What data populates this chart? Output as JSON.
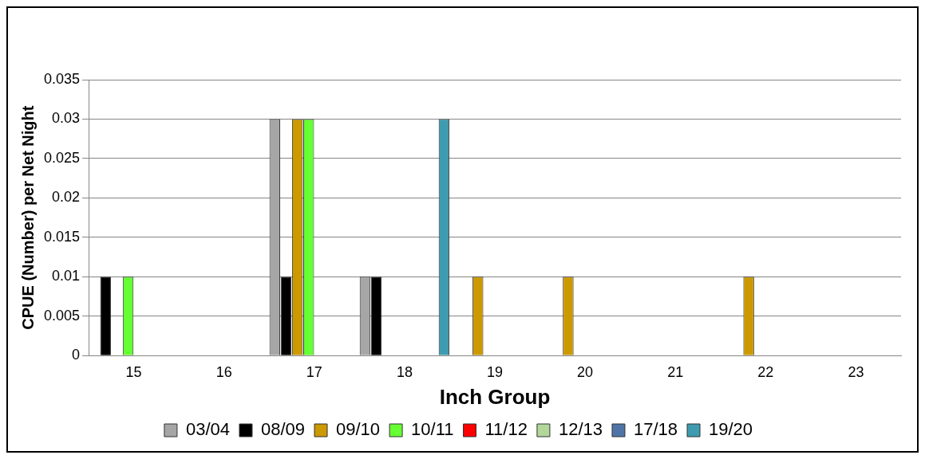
{
  "chart_data": {
    "type": "bar",
    "xlabel": "Inch Group",
    "ylabel": "CPUE (Number) per Net Night",
    "categories": [
      "15",
      "16",
      "17",
      "18",
      "19",
      "20",
      "21",
      "22",
      "23"
    ],
    "series": [
      {
        "name": "03/04",
        "color": "#a6a6a6",
        "values": [
          0,
          0,
          0.03,
          0.01,
          0,
          0,
          0,
          0,
          0
        ]
      },
      {
        "name": "08/09",
        "color": "#000000",
        "values": [
          0.01,
          0,
          0.01,
          0.01,
          0,
          0,
          0,
          0,
          0
        ]
      },
      {
        "name": "09/10",
        "color": "#cc9900",
        "values": [
          0,
          0,
          0.03,
          0,
          0.01,
          0.01,
          0,
          0.01,
          0
        ]
      },
      {
        "name": "10/11",
        "color": "#66ff33",
        "values": [
          0.01,
          0,
          0.03,
          0,
          0,
          0,
          0,
          0,
          0
        ]
      },
      {
        "name": "11/12",
        "color": "#ff0000",
        "values": [
          0,
          0,
          0,
          0,
          0,
          0,
          0,
          0,
          0
        ]
      },
      {
        "name": "12/13",
        "color": "#b3d69b",
        "values": [
          0,
          0,
          0,
          0,
          0,
          0,
          0,
          0,
          0
        ]
      },
      {
        "name": "17/18",
        "color": "#4f75a8",
        "values": [
          0,
          0,
          0,
          0,
          0,
          0,
          0,
          0,
          0
        ]
      },
      {
        "name": "19/20",
        "color": "#3f9cb0",
        "values": [
          0,
          0,
          0,
          0.03,
          0,
          0,
          0,
          0,
          0
        ]
      }
    ],
    "ylim": [
      0,
      0.035
    ],
    "yticks": [
      0,
      0.005,
      0.01,
      0.015,
      0.02,
      0.025,
      0.03,
      0.035
    ],
    "grid": "y",
    "legend": "bottom"
  }
}
